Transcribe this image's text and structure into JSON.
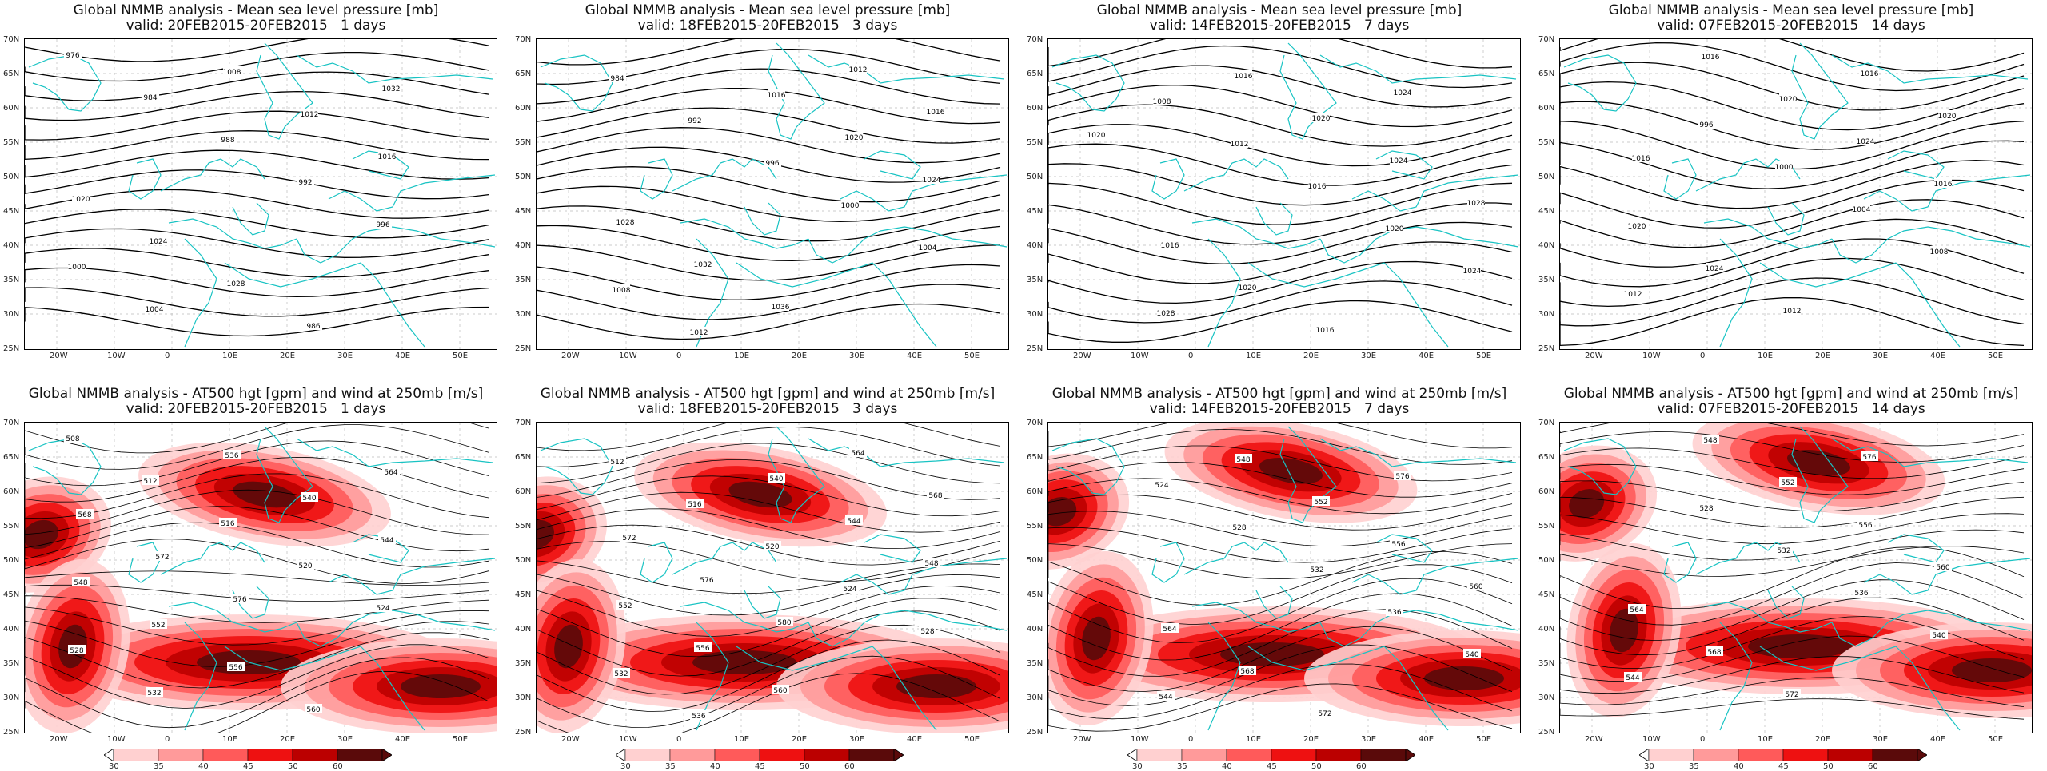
{
  "panels": [
    {
      "type": "mslp",
      "title1": "Global NMMB analysis - Mean sea level pressure [mb]",
      "title2": "valid: 20FEB2015-20FEB2015   1 days",
      "labels": [
        "976",
        "984",
        "988",
        "992",
        "996",
        "1000",
        "1004",
        "1008",
        "1012",
        "1016",
        "1020",
        "1024",
        "1028",
        "986",
        "1032"
      ]
    },
    {
      "type": "mslp",
      "title1": "Global NMMB analysis - Mean sea level pressure [mb]",
      "title2": "valid: 18FEB2015-20FEB2015   3 days",
      "labels": [
        "984",
        "992",
        "996",
        "1000",
        "1004",
        "1008",
        "1012",
        "1016",
        "1020",
        "1024",
        "1028",
        "1032",
        "1036",
        "1012",
        "1016"
      ]
    },
    {
      "type": "mslp",
      "title1": "Global NMMB analysis - Mean sea level pressure [mb]",
      "title2": "valid: 14FEB2015-20FEB2015   7 days",
      "labels": [
        "1008",
        "1012",
        "1016",
        "1020",
        "1024",
        "1028",
        "1016",
        "1020",
        "1024",
        "1028",
        "1016",
        "1020",
        "1016",
        "1024",
        "1020"
      ]
    },
    {
      "type": "mslp",
      "title1": "Global NMMB analysis - Mean sea level pressure [mb]",
      "title2": "valid: 07FEB2015-20FEB2015   14 days",
      "labels": [
        "996",
        "1000",
        "1004",
        "1008",
        "1012",
        "1016",
        "1020",
        "1024",
        "1016",
        "1020",
        "1024",
        "1012",
        "1016",
        "1020",
        "1016"
      ]
    },
    {
      "type": "z500",
      "title1": "Global NMMB analysis - AT500 hgt [gpm] and wind at 250mb [m/s]",
      "title2": "valid: 20FEB2015-20FEB2015   1 days",
      "labels": [
        "508",
        "512",
        "516",
        "520",
        "524",
        "528",
        "532",
        "536",
        "540",
        "544",
        "548",
        "552",
        "556",
        "560",
        "564",
        "568",
        "572",
        "576"
      ]
    },
    {
      "type": "z500",
      "title1": "Global NMMB analysis - AT500 hgt [gpm] and wind at 250mb [m/s]",
      "title2": "valid: 18FEB2015-20FEB2015   3 days",
      "labels": [
        "512",
        "516",
        "520",
        "524",
        "528",
        "532",
        "536",
        "540",
        "544",
        "548",
        "552",
        "556",
        "560",
        "564",
        "568",
        "572",
        "576",
        "580"
      ]
    },
    {
      "type": "z500",
      "title1": "Global NMMB analysis - AT500 hgt [gpm] and wind at 250mb [m/s]",
      "title2": "valid: 14FEB2015-20FEB2015   7 days",
      "labels": [
        "524",
        "528",
        "532",
        "536",
        "540",
        "544",
        "548",
        "552",
        "556",
        "560",
        "564",
        "568",
        "572",
        "576"
      ]
    },
    {
      "type": "z500",
      "title1": "Global NMMB analysis - AT500 hgt [gpm] and wind at 250mb [m/s]",
      "title2": "valid: 07FEB2015-20FEB2015   14 days",
      "labels": [
        "528",
        "532",
        "536",
        "540",
        "544",
        "548",
        "552",
        "556",
        "560",
        "564",
        "568",
        "572",
        "576"
      ]
    }
  ],
  "lat_labels": [
    "70N",
    "65N",
    "60N",
    "55N",
    "50N",
    "45N",
    "40N",
    "35N",
    "30N",
    "25N"
  ],
  "lon_labels": [
    "20W",
    "10W",
    "0",
    "10E",
    "20E",
    "30E",
    "40E",
    "50E"
  ],
  "colorbar_ticks": [
    "30",
    "35",
    "40",
    "45",
    "50",
    "60"
  ],
  "colors": {
    "coast": "#19c3c3",
    "contour": "#000000",
    "wind": [
      "#ffd0d0",
      "#ff9a9a",
      "#ff5a5a",
      "#ee1111",
      "#bb0000",
      "#5a0a0a"
    ]
  }
}
